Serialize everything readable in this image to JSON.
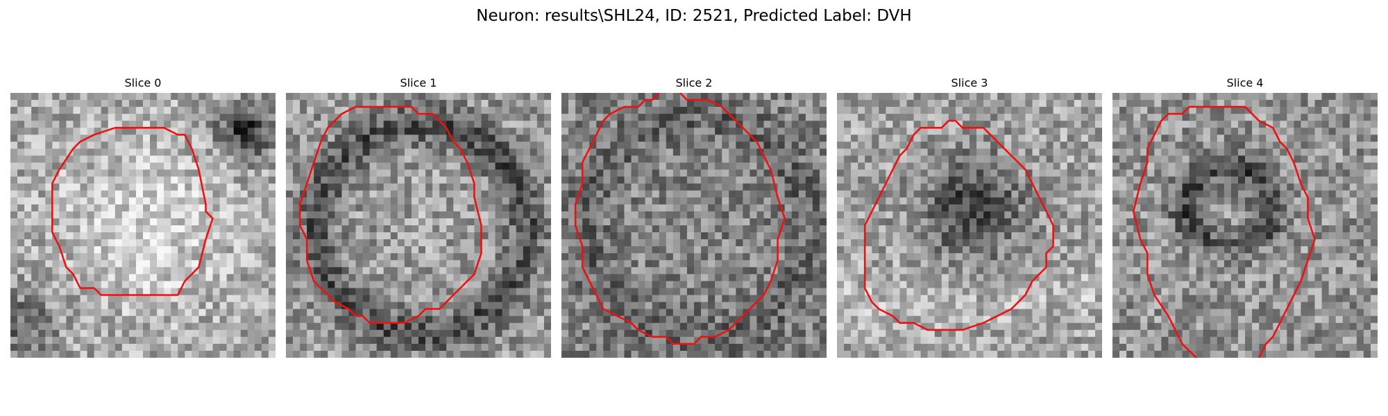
{
  "figure": {
    "title": "Neuron: results\\SHL24, ID: 2521, Predicted Label: DVH"
  },
  "slices": [
    {
      "label": "Slice 0",
      "pattern": "bright-center",
      "seed": 11,
      "contour": [
        [
          15,
          5
        ],
        [
          22,
          5
        ],
        [
          24,
          6
        ],
        [
          25,
          6
        ],
        [
          26,
          8
        ],
        [
          27,
          11
        ],
        [
          28,
          16
        ],
        [
          28,
          17
        ],
        [
          29,
          18
        ],
        [
          28,
          21
        ],
        [
          27,
          25
        ],
        [
          25,
          27
        ],
        [
          24,
          29
        ],
        [
          17,
          29
        ],
        [
          13,
          29
        ],
        [
          12,
          28
        ],
        [
          10,
          28
        ],
        [
          9,
          26
        ],
        [
          8,
          25
        ],
        [
          7,
          22
        ],
        [
          6,
          20
        ],
        [
          6,
          16
        ],
        [
          6,
          13
        ],
        [
          7,
          11
        ],
        [
          9,
          8
        ],
        [
          10,
          7
        ],
        [
          12,
          6
        ],
        [
          15,
          5
        ]
      ]
    },
    {
      "label": "Slice 1",
      "pattern": "ring-dark",
      "seed": 23,
      "contour": [
        [
          10,
          2
        ],
        [
          18,
          2
        ],
        [
          19,
          3
        ],
        [
          21,
          3
        ],
        [
          22,
          4
        ],
        [
          23,
          5
        ],
        [
          24,
          7
        ],
        [
          25,
          8
        ],
        [
          26,
          10
        ],
        [
          27,
          13
        ],
        [
          27,
          15
        ],
        [
          28,
          19
        ],
        [
          28,
          23
        ],
        [
          27,
          26
        ],
        [
          25,
          28
        ],
        [
          23,
          30
        ],
        [
          22,
          31
        ],
        [
          20,
          31
        ],
        [
          19,
          32
        ],
        [
          17,
          33
        ],
        [
          12,
          33
        ],
        [
          11,
          32
        ],
        [
          10,
          32
        ],
        [
          9,
          31
        ],
        [
          7,
          30
        ],
        [
          6,
          29
        ],
        [
          4,
          27
        ],
        [
          3,
          24
        ],
        [
          3,
          21
        ],
        [
          2,
          19
        ],
        [
          2,
          16
        ],
        [
          3,
          13
        ],
        [
          4,
          10
        ],
        [
          5,
          7
        ],
        [
          6,
          5
        ],
        [
          8,
          3
        ],
        [
          10,
          2
        ]
      ]
    },
    {
      "label": "Slice 2",
      "pattern": "noisy-mid",
      "seed": 37,
      "contour": [
        [
          14,
          0
        ],
        [
          13,
          1
        ],
        [
          12,
          1
        ],
        [
          11,
          2
        ],
        [
          9,
          2
        ],
        [
          7,
          3
        ],
        [
          6,
          4
        ],
        [
          5,
          6
        ],
        [
          4,
          8
        ],
        [
          3,
          10
        ],
        [
          3,
          13
        ],
        [
          2,
          16
        ],
        [
          2,
          19
        ],
        [
          3,
          22
        ],
        [
          3,
          25
        ],
        [
          4,
          27
        ],
        [
          5,
          29
        ],
        [
          6,
          31
        ],
        [
          8,
          32
        ],
        [
          10,
          33
        ],
        [
          11,
          34
        ],
        [
          13,
          35
        ],
        [
          15,
          35
        ],
        [
          16,
          36
        ],
        [
          19,
          36
        ],
        [
          20,
          35
        ],
        [
          22,
          35
        ],
        [
          24,
          34
        ],
        [
          25,
          33
        ],
        [
          27,
          31
        ],
        [
          29,
          29
        ],
        [
          30,
          27
        ],
        [
          31,
          24
        ],
        [
          31,
          21
        ],
        [
          32,
          18
        ],
        [
          31,
          15
        ],
        [
          30,
          11
        ],
        [
          29,
          9
        ],
        [
          28,
          7
        ],
        [
          26,
          5
        ],
        [
          24,
          3
        ],
        [
          23,
          2
        ],
        [
          21,
          1
        ],
        [
          18,
          1
        ],
        [
          17,
          0
        ]
      ]
    },
    {
      "label": "Slice 3",
      "pattern": "dark-upper",
      "seed": 53,
      "contour": [
        [
          17,
          4
        ],
        [
          18,
          5
        ],
        [
          21,
          5
        ],
        [
          22,
          6
        ],
        [
          23,
          7
        ],
        [
          25,
          9
        ],
        [
          26,
          10
        ],
        [
          27,
          11
        ],
        [
          28,
          13
        ],
        [
          29,
          15
        ],
        [
          30,
          17
        ],
        [
          31,
          19
        ],
        [
          31,
          22
        ],
        [
          30,
          23
        ],
        [
          30,
          25
        ],
        [
          29,
          26
        ],
        [
          28,
          27
        ],
        [
          27,
          29
        ],
        [
          26,
          30
        ],
        [
          25,
          31
        ],
        [
          23,
          32
        ],
        [
          21,
          33
        ],
        [
          18,
          34
        ],
        [
          13,
          34
        ],
        [
          11,
          33
        ],
        [
          9,
          33
        ],
        [
          8,
          32
        ],
        [
          6,
          31
        ],
        [
          5,
          30
        ],
        [
          4,
          28
        ],
        [
          4,
          22
        ],
        [
          4,
          19
        ],
        [
          5,
          17
        ],
        [
          6,
          15
        ],
        [
          7,
          13
        ],
        [
          8,
          11
        ],
        [
          9,
          9
        ],
        [
          10,
          8
        ],
        [
          11,
          6
        ],
        [
          12,
          5
        ],
        [
          15,
          5
        ],
        [
          16,
          4
        ],
        [
          17,
          4
        ]
      ]
    },
    {
      "label": "Slice 4",
      "pattern": "dark-arc",
      "seed": 71,
      "contour": [
        [
          13,
          39
        ],
        [
          11,
          37
        ],
        [
          10,
          36
        ],
        [
          9,
          34
        ],
        [
          8,
          32
        ],
        [
          6,
          29
        ],
        [
          5,
          26
        ],
        [
          5,
          23
        ],
        [
          4,
          21
        ],
        [
          3,
          17
        ],
        [
          4,
          13
        ],
        [
          5,
          10
        ],
        [
          5,
          8
        ],
        [
          6,
          6
        ],
        [
          7,
          4
        ],
        [
          8,
          3
        ],
        [
          10,
          3
        ],
        [
          11,
          2
        ],
        [
          14,
          2
        ],
        [
          16,
          2
        ],
        [
          19,
          2
        ],
        [
          20,
          3
        ],
        [
          21,
          4
        ],
        [
          23,
          5
        ],
        [
          24,
          7
        ],
        [
          25,
          8
        ],
        [
          26,
          10
        ],
        [
          27,
          13
        ],
        [
          28,
          15
        ],
        [
          28,
          18
        ],
        [
          29,
          21
        ],
        [
          28,
          24
        ],
        [
          27,
          27
        ],
        [
          26,
          29
        ],
        [
          25,
          31
        ],
        [
          24,
          33
        ],
        [
          23,
          35
        ],
        [
          22,
          36
        ],
        [
          21,
          38
        ],
        [
          20,
          39
        ]
      ]
    }
  ]
}
